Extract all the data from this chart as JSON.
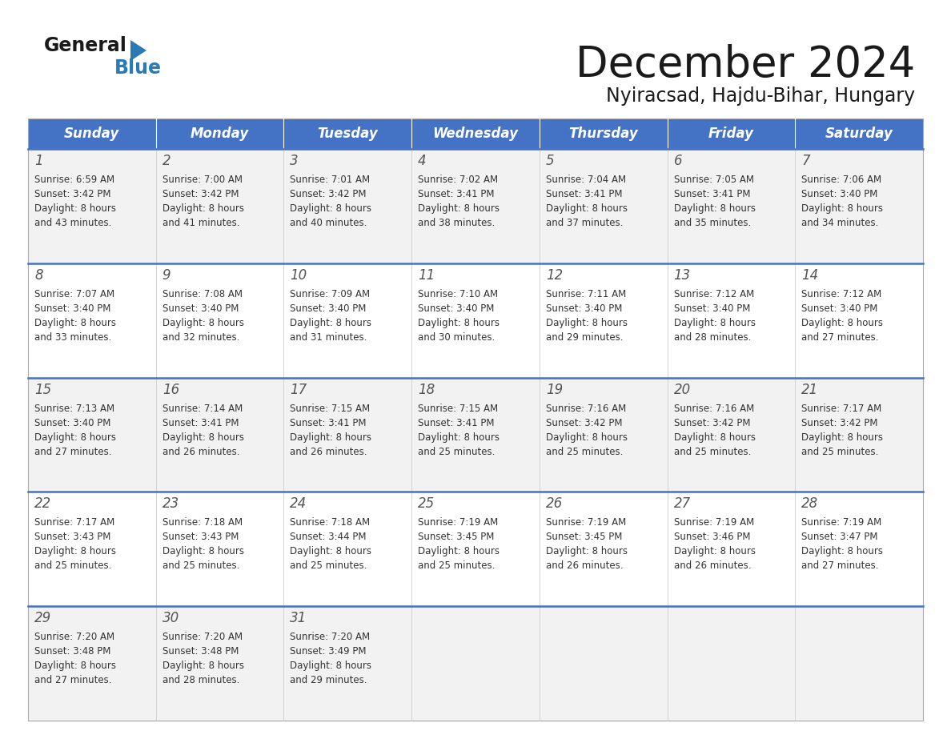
{
  "title": "December 2024",
  "subtitle": "Nyiracsad, Hajdu-Bihar, Hungary",
  "days_of_week": [
    "Sunday",
    "Monday",
    "Tuesday",
    "Wednesday",
    "Thursday",
    "Friday",
    "Saturday"
  ],
  "header_bg_color": "#4472C4",
  "header_text_color": "#FFFFFF",
  "separator_color": "#4472C4",
  "calendar_data": [
    [
      {
        "day": 1,
        "sunrise": "6:59 AM",
        "sunset": "3:42 PM",
        "daylight": "8 hours and 43 minutes"
      },
      {
        "day": 2,
        "sunrise": "7:00 AM",
        "sunset": "3:42 PM",
        "daylight": "8 hours and 41 minutes"
      },
      {
        "day": 3,
        "sunrise": "7:01 AM",
        "sunset": "3:42 PM",
        "daylight": "8 hours and 40 minutes"
      },
      {
        "day": 4,
        "sunrise": "7:02 AM",
        "sunset": "3:41 PM",
        "daylight": "8 hours and 38 minutes"
      },
      {
        "day": 5,
        "sunrise": "7:04 AM",
        "sunset": "3:41 PM",
        "daylight": "8 hours and 37 minutes"
      },
      {
        "day": 6,
        "sunrise": "7:05 AM",
        "sunset": "3:41 PM",
        "daylight": "8 hours and 35 minutes"
      },
      {
        "day": 7,
        "sunrise": "7:06 AM",
        "sunset": "3:40 PM",
        "daylight": "8 hours and 34 minutes"
      }
    ],
    [
      {
        "day": 8,
        "sunrise": "7:07 AM",
        "sunset": "3:40 PM",
        "daylight": "8 hours and 33 minutes"
      },
      {
        "day": 9,
        "sunrise": "7:08 AM",
        "sunset": "3:40 PM",
        "daylight": "8 hours and 32 minutes"
      },
      {
        "day": 10,
        "sunrise": "7:09 AM",
        "sunset": "3:40 PM",
        "daylight": "8 hours and 31 minutes"
      },
      {
        "day": 11,
        "sunrise": "7:10 AM",
        "sunset": "3:40 PM",
        "daylight": "8 hours and 30 minutes"
      },
      {
        "day": 12,
        "sunrise": "7:11 AM",
        "sunset": "3:40 PM",
        "daylight": "8 hours and 29 minutes"
      },
      {
        "day": 13,
        "sunrise": "7:12 AM",
        "sunset": "3:40 PM",
        "daylight": "8 hours and 28 minutes"
      },
      {
        "day": 14,
        "sunrise": "7:12 AM",
        "sunset": "3:40 PM",
        "daylight": "8 hours and 27 minutes"
      }
    ],
    [
      {
        "day": 15,
        "sunrise": "7:13 AM",
        "sunset": "3:40 PM",
        "daylight": "8 hours and 27 minutes"
      },
      {
        "day": 16,
        "sunrise": "7:14 AM",
        "sunset": "3:41 PM",
        "daylight": "8 hours and 26 minutes"
      },
      {
        "day": 17,
        "sunrise": "7:15 AM",
        "sunset": "3:41 PM",
        "daylight": "8 hours and 26 minutes"
      },
      {
        "day": 18,
        "sunrise": "7:15 AM",
        "sunset": "3:41 PM",
        "daylight": "8 hours and 25 minutes"
      },
      {
        "day": 19,
        "sunrise": "7:16 AM",
        "sunset": "3:42 PM",
        "daylight": "8 hours and 25 minutes"
      },
      {
        "day": 20,
        "sunrise": "7:16 AM",
        "sunset": "3:42 PM",
        "daylight": "8 hours and 25 minutes"
      },
      {
        "day": 21,
        "sunrise": "7:17 AM",
        "sunset": "3:42 PM",
        "daylight": "8 hours and 25 minutes"
      }
    ],
    [
      {
        "day": 22,
        "sunrise": "7:17 AM",
        "sunset": "3:43 PM",
        "daylight": "8 hours and 25 minutes"
      },
      {
        "day": 23,
        "sunrise": "7:18 AM",
        "sunset": "3:43 PM",
        "daylight": "8 hours and 25 minutes"
      },
      {
        "day": 24,
        "sunrise": "7:18 AM",
        "sunset": "3:44 PM",
        "daylight": "8 hours and 25 minutes"
      },
      {
        "day": 25,
        "sunrise": "7:19 AM",
        "sunset": "3:45 PM",
        "daylight": "8 hours and 25 minutes"
      },
      {
        "day": 26,
        "sunrise": "7:19 AM",
        "sunset": "3:45 PM",
        "daylight": "8 hours and 26 minutes"
      },
      {
        "day": 27,
        "sunrise": "7:19 AM",
        "sunset": "3:46 PM",
        "daylight": "8 hours and 26 minutes"
      },
      {
        "day": 28,
        "sunrise": "7:19 AM",
        "sunset": "3:47 PM",
        "daylight": "8 hours and 27 minutes"
      }
    ],
    [
      {
        "day": 29,
        "sunrise": "7:20 AM",
        "sunset": "3:48 PM",
        "daylight": "8 hours and 27 minutes"
      },
      {
        "day": 30,
        "sunrise": "7:20 AM",
        "sunset": "3:48 PM",
        "daylight": "8 hours and 28 minutes"
      },
      {
        "day": 31,
        "sunrise": "7:20 AM",
        "sunset": "3:49 PM",
        "daylight": "8 hours and 29 minutes"
      },
      null,
      null,
      null,
      null
    ]
  ]
}
